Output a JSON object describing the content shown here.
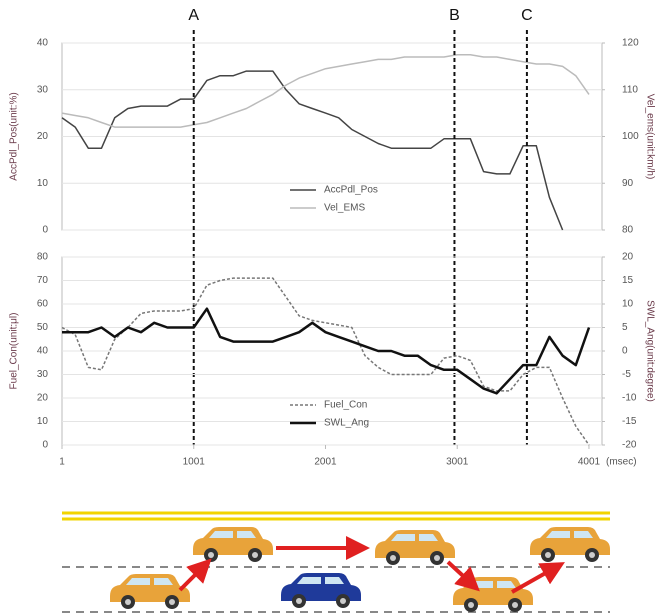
{
  "chart_data": [
    {
      "type": "line",
      "ylabel": "AccPdl_Pos(unit:%)",
      "y2label": "Vel_ems(unit:km/h)",
      "x": [
        1,
        101,
        201,
        301,
        401,
        501,
        601,
        701,
        801,
        901,
        1001,
        1101,
        1201,
        1301,
        1401,
        1501,
        1601,
        1701,
        1801,
        1901,
        2001,
        2101,
        2201,
        2301,
        2401,
        2501,
        2601,
        2701,
        2801,
        2901,
        3001,
        3101,
        3201,
        3301,
        3401,
        3501,
        3601,
        3701,
        3801,
        3901,
        4001
      ],
      "xlim": [
        1,
        4100
      ],
      "ylim": [
        0,
        40
      ],
      "yticks": [
        0,
        10,
        20,
        30,
        40
      ],
      "y2lim": [
        80,
        120
      ],
      "y2ticks": [
        80,
        90,
        100,
        110,
        120
      ],
      "grid": true,
      "legend": "lower center",
      "series": [
        {
          "name": "AccPdl_Pos",
          "color": "#444444",
          "values": [
            24,
            22,
            17.5,
            17.5,
            24,
            26,
            26.5,
            26.5,
            26.5,
            28,
            28,
            32,
            33,
            33,
            34,
            34,
            34,
            30,
            27,
            26,
            25,
            24,
            21.5,
            20,
            18.5,
            17.5,
            17.5,
            17.5,
            17.5,
            19.5,
            19.5,
            19.5,
            12.5,
            12,
            12,
            18,
            18,
            7,
            0,
            null,
            null
          ]
        },
        {
          "name": "Vel_EMS",
          "color": "#bbbbbb",
          "axis": "y2",
          "values": [
            105,
            104.5,
            104,
            103,
            102,
            102,
            102,
            102,
            102,
            102,
            102.5,
            103,
            104,
            105,
            106,
            107.5,
            109,
            111,
            112.5,
            113.5,
            114.5,
            115,
            115.5,
            116,
            116.5,
            116.5,
            117,
            117,
            117,
            117,
            117.5,
            117.5,
            117,
            117,
            116.5,
            116,
            115.5,
            115.5,
            115,
            113,
            109
          ]
        }
      ],
      "annotations": [
        {
          "label": "A",
          "x": 1001
        },
        {
          "label": "B",
          "x": 2980
        },
        {
          "label": "C",
          "x": 3530
        }
      ]
    },
    {
      "type": "line",
      "ylabel": "Fuel_Con(unit:μl)",
      "y2label": "SWL_Ang(unit:degree)",
      "xlabel": "(msec)",
      "x": [
        1,
        101,
        201,
        301,
        401,
        501,
        601,
        701,
        801,
        901,
        1001,
        1101,
        1201,
        1301,
        1401,
        1501,
        1601,
        1701,
        1801,
        1901,
        2001,
        2101,
        2201,
        2301,
        2401,
        2501,
        2601,
        2701,
        2801,
        2901,
        3001,
        3101,
        3201,
        3301,
        3401,
        3501,
        3601,
        3701,
        3801,
        3901,
        4001
      ],
      "xlim": [
        1,
        4100
      ],
      "xticks": [
        1,
        1001,
        2001,
        3001,
        4001
      ],
      "ylim": [
        0,
        80
      ],
      "yticks": [
        0,
        10,
        20,
        30,
        40,
        50,
        60,
        70,
        80
      ],
      "y2lim": [
        -20,
        20
      ],
      "y2ticks": [
        -20,
        -15,
        -10,
        -5,
        0,
        5,
        10,
        15,
        20
      ],
      "grid": true,
      "legend": "lower center",
      "series": [
        {
          "name": "Fuel_Con",
          "color": "#777777",
          "dash": true,
          "values": [
            50,
            47,
            33,
            32,
            45,
            50,
            56,
            57,
            57,
            57,
            58,
            68,
            70,
            71,
            71,
            71,
            71,
            63,
            55,
            53,
            52,
            51,
            50,
            38,
            33,
            30,
            30,
            30,
            30,
            37,
            38,
            36,
            25,
            23,
            23,
            30,
            33,
            33,
            20,
            8,
            0
          ]
        },
        {
          "name": "SWL_Ang",
          "color": "#111111",
          "axis": "y2",
          "width": 2.5,
          "values": [
            4,
            4,
            4,
            5,
            3,
            5,
            4,
            6,
            5,
            5,
            5,
            9,
            3,
            2,
            2,
            2,
            2,
            3,
            4,
            6,
            4,
            3,
            2,
            1,
            0,
            0,
            -1,
            -1,
            -3,
            -4,
            -4,
            -6,
            -8,
            -9,
            -6,
            -3,
            -3,
            3,
            -1,
            -3,
            5
          ]
        }
      ]
    }
  ]
}
